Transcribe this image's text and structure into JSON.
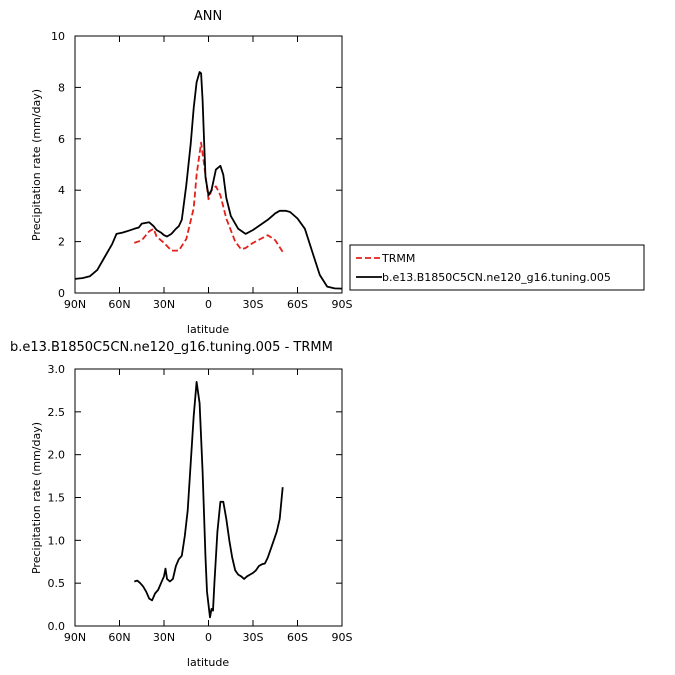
{
  "colors": {
    "trmm": "#e32119",
    "model": "#000000",
    "axis": "#000000"
  },
  "chart_data": [
    {
      "type": "line",
      "title": "ANN",
      "xlabel": "latitude",
      "ylabel": "Precipitation rate (mm/day)",
      "xlim": [
        90,
        -90
      ],
      "ylim": [
        0,
        10
      ],
      "xticks": [
        90,
        60,
        30,
        0,
        -30,
        -60,
        -90
      ],
      "xtick_labels": [
        "90N",
        "60N",
        "30N",
        "0",
        "30S",
        "60S",
        "90S"
      ],
      "yticks": [
        0,
        2,
        4,
        6,
        8,
        10
      ],
      "ytick_labels": [
        "0",
        "2",
        "4",
        "6",
        "8",
        "10"
      ],
      "legend_position": "right",
      "series": [
        {
          "name": "TRMM",
          "style": "dashed",
          "x": [
            50,
            45,
            40,
            37,
            35,
            30,
            25,
            20,
            15,
            10,
            8,
            5,
            3,
            0,
            -2,
            -5,
            -8,
            -12,
            -18,
            -22,
            -25,
            -30,
            -35,
            -40,
            -45,
            -50
          ],
          "y": [
            1.95,
            2.05,
            2.4,
            2.5,
            2.2,
            1.95,
            1.65,
            1.65,
            2.1,
            3.3,
            4.6,
            5.85,
            5.0,
            3.65,
            4.0,
            4.15,
            3.8,
            2.9,
            2.0,
            1.7,
            1.75,
            1.95,
            2.1,
            2.25,
            2.05,
            1.6
          ]
        },
        {
          "name": "b.e13.B1850C5CN.ne120_g16.tuning.005",
          "style": "solid",
          "x": [
            90,
            85,
            80,
            75,
            70,
            65,
            62,
            58,
            55,
            50,
            47,
            45,
            40,
            37,
            35,
            32,
            30,
            28,
            25,
            22,
            20,
            18,
            15,
            12,
            10,
            8,
            6,
            5,
            4,
            3,
            2,
            0,
            -2,
            -5,
            -8,
            -10,
            -12,
            -15,
            -20,
            -25,
            -30,
            -35,
            -40,
            -45,
            -48,
            -52,
            -55,
            -60,
            -65,
            -70,
            -75,
            -80,
            -85,
            -90
          ],
          "y": [
            0.55,
            0.58,
            0.65,
            0.9,
            1.4,
            1.9,
            2.3,
            2.35,
            2.4,
            2.5,
            2.55,
            2.7,
            2.75,
            2.6,
            2.45,
            2.35,
            2.25,
            2.2,
            2.3,
            2.5,
            2.6,
            2.85,
            4.2,
            5.8,
            7.2,
            8.2,
            8.6,
            8.55,
            7.5,
            5.9,
            4.5,
            3.8,
            4.0,
            4.8,
            4.95,
            4.6,
            3.7,
            3.0,
            2.5,
            2.3,
            2.45,
            2.65,
            2.85,
            3.1,
            3.2,
            3.2,
            3.15,
            2.9,
            2.5,
            1.6,
            0.7,
            0.25,
            0.18,
            0.17
          ]
        }
      ]
    },
    {
      "type": "line",
      "title": "b.e13.B1850C5CN.ne120_g16.tuning.005 - TRMM",
      "xlabel": "latitude",
      "ylabel": "Precipitation rate (mm/day)",
      "xlim": [
        90,
        -90
      ],
      "ylim": [
        0,
        3
      ],
      "xticks": [
        90,
        60,
        30,
        0,
        -30,
        -60,
        -90
      ],
      "xtick_labels": [
        "90N",
        "60N",
        "30N",
        "0",
        "30S",
        "60S",
        "90S"
      ],
      "yticks": [
        0,
        0.5,
        1.0,
        1.5,
        2.0,
        2.5,
        3.0
      ],
      "ytick_labels": [
        "0.0",
        "0.5",
        "1.0",
        "1.5",
        "2.0",
        "2.5",
        "3.0"
      ],
      "series": [
        {
          "style": "solid",
          "x": [
            50,
            48,
            46,
            44,
            42,
            40,
            38,
            36,
            34,
            32,
            30,
            29,
            28,
            26,
            24,
            22,
            20,
            18,
            16,
            14,
            12,
            10,
            8,
            6,
            4,
            2,
            1,
            0,
            -1,
            -2,
            -3,
            -4,
            -5,
            -6,
            -8,
            -10,
            -12,
            -14,
            -16,
            -18,
            -20,
            -22,
            -24,
            -26,
            -28,
            -30,
            -32,
            -34,
            -36,
            -38,
            -40,
            -42,
            -44,
            -46,
            -48,
            -50
          ],
          "y": [
            0.52,
            0.53,
            0.5,
            0.46,
            0.4,
            0.32,
            0.3,
            0.38,
            0.42,
            0.5,
            0.58,
            0.67,
            0.55,
            0.52,
            0.55,
            0.7,
            0.78,
            0.82,
            1.05,
            1.35,
            1.9,
            2.45,
            2.85,
            2.6,
            1.8,
            0.8,
            0.4,
            0.25,
            0.1,
            0.2,
            0.18,
            0.5,
            0.8,
            1.1,
            1.45,
            1.45,
            1.25,
            1.0,
            0.8,
            0.65,
            0.6,
            0.58,
            0.55,
            0.58,
            0.6,
            0.62,
            0.65,
            0.7,
            0.72,
            0.73,
            0.8,
            0.9,
            1.0,
            1.1,
            1.25,
            1.62
          ]
        }
      ]
    }
  ]
}
